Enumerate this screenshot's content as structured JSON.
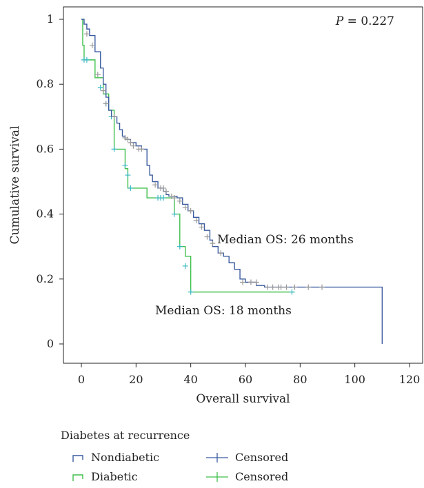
{
  "chart_data": {
    "type": "line",
    "step": true,
    "xlabel": "Overall survival",
    "ylabel": "Cumulative survival",
    "xlim": [
      0,
      120
    ],
    "ylim": [
      0,
      1
    ],
    "xticks": [
      "0",
      "20",
      "40",
      "60",
      "80",
      "100",
      "120"
    ],
    "yticks": [
      "0",
      "0.2",
      "0.4",
      "0.6",
      "0.8",
      "1"
    ],
    "grid": false,
    "pvalue_label": "P",
    "pvalue_text": " = 0.227",
    "annotations": [
      "Median OS: 26 months",
      "Median OS: 18 months"
    ],
    "series": [
      {
        "name": "Nondiabetic",
        "color": "#3a5ba0",
        "censor_color": "#999999",
        "steps": [
          [
            0,
            1.0
          ],
          [
            1,
            0.985
          ],
          [
            2,
            0.97
          ],
          [
            3,
            0.95
          ],
          [
            5,
            0.9
          ],
          [
            7,
            0.85
          ],
          [
            8,
            0.8
          ],
          [
            9,
            0.76
          ],
          [
            10,
            0.72
          ],
          [
            11,
            0.7
          ],
          [
            13,
            0.68
          ],
          [
            14,
            0.66
          ],
          [
            15,
            0.64
          ],
          [
            16,
            0.63
          ],
          [
            18,
            0.62
          ],
          [
            20,
            0.61
          ],
          [
            22,
            0.6
          ],
          [
            24,
            0.55
          ],
          [
            25,
            0.52
          ],
          [
            26,
            0.5
          ],
          [
            28,
            0.48
          ],
          [
            30,
            0.47
          ],
          [
            31,
            0.46
          ],
          [
            32,
            0.455
          ],
          [
            35,
            0.45
          ],
          [
            37,
            0.43
          ],
          [
            39,
            0.41
          ],
          [
            41,
            0.39
          ],
          [
            43,
            0.37
          ],
          [
            45,
            0.35
          ],
          [
            47,
            0.32
          ],
          [
            48,
            0.3
          ],
          [
            50,
            0.28
          ],
          [
            52,
            0.27
          ],
          [
            54,
            0.25
          ],
          [
            56,
            0.23
          ],
          [
            58,
            0.2
          ],
          [
            60,
            0.19
          ],
          [
            64,
            0.18
          ],
          [
            67,
            0.175
          ],
          [
            110,
            0.175
          ],
          [
            110,
            0.0
          ]
        ],
        "censored": [
          [
            2,
            0.955
          ],
          [
            4,
            0.92
          ],
          [
            6,
            0.83
          ],
          [
            8,
            0.78
          ],
          [
            9,
            0.74
          ],
          [
            12,
            0.7
          ],
          [
            16,
            0.635
          ],
          [
            17,
            0.63
          ],
          [
            18,
            0.62
          ],
          [
            19,
            0.61
          ],
          [
            21,
            0.6
          ],
          [
            22,
            0.6
          ],
          [
            27,
            0.49
          ],
          [
            29,
            0.48
          ],
          [
            30,
            0.48
          ],
          [
            31,
            0.47
          ],
          [
            33,
            0.455
          ],
          [
            34,
            0.45
          ],
          [
            36,
            0.44
          ],
          [
            38,
            0.42
          ],
          [
            40,
            0.41
          ],
          [
            42,
            0.38
          ],
          [
            44,
            0.36
          ],
          [
            46,
            0.33
          ],
          [
            48,
            0.31
          ],
          [
            51,
            0.28
          ],
          [
            59,
            0.19
          ],
          [
            62,
            0.19
          ],
          [
            64,
            0.19
          ],
          [
            68,
            0.175
          ],
          [
            70,
            0.175
          ],
          [
            72,
            0.175
          ],
          [
            73,
            0.175
          ],
          [
            75,
            0.175
          ],
          [
            78,
            0.175
          ],
          [
            83,
            0.175
          ],
          [
            88,
            0.175
          ]
        ]
      },
      {
        "name": "Diabetic",
        "color": "#3fbf4a",
        "censor_color": "#39b9c4",
        "steps": [
          [
            0,
            1.0
          ],
          [
            0.5,
            0.92
          ],
          [
            1,
            0.875
          ],
          [
            3,
            0.875
          ],
          [
            5,
            0.82
          ],
          [
            8,
            0.77
          ],
          [
            10,
            0.72
          ],
          [
            12,
            0.6
          ],
          [
            16,
            0.54
          ],
          [
            17,
            0.48
          ],
          [
            24,
            0.45
          ],
          [
            34,
            0.4
          ],
          [
            36,
            0.3
          ],
          [
            38,
            0.27
          ],
          [
            40,
            0.16
          ],
          [
            78,
            0.16
          ]
        ],
        "censored": [
          [
            1,
            0.875
          ],
          [
            2,
            0.875
          ],
          [
            7,
            0.79
          ],
          [
            9,
            0.74
          ],
          [
            11,
            0.7
          ],
          [
            12,
            0.6
          ],
          [
            16,
            0.55
          ],
          [
            17,
            0.52
          ],
          [
            18,
            0.48
          ],
          [
            28,
            0.45
          ],
          [
            29,
            0.45
          ],
          [
            30,
            0.45
          ],
          [
            34,
            0.4
          ],
          [
            36,
            0.3
          ],
          [
            38,
            0.24
          ],
          [
            40,
            0.16
          ],
          [
            77,
            0.16
          ]
        ]
      }
    ],
    "legend": {
      "title": "Diabetes at recurrence",
      "entries": [
        "Nondiabetic",
        "Censored",
        "Diabetic",
        "Censored"
      ]
    }
  }
}
